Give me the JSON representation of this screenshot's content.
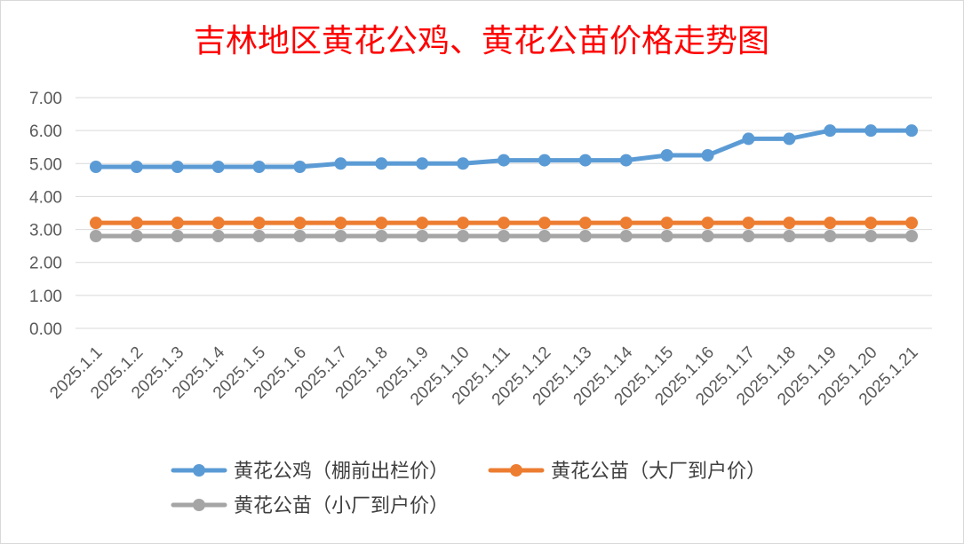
{
  "chart_data": {
    "type": "line",
    "title": "吉林地区黄花公鸡、黄花公苗价格走势图",
    "xlabel": "",
    "ylabel": "",
    "categories": [
      "2025.1.1",
      "2025.1.2",
      "2025.1.3",
      "2025.1.4",
      "2025.1.5",
      "2025.1.6",
      "2025.1.7",
      "2025.1.8",
      "2025.1.9",
      "2025.1.10",
      "2025.1.11",
      "2025.1.12",
      "2025.1.13",
      "2025.1.14",
      "2025.1.15",
      "2025.1.16",
      "2025.1.17",
      "2025.1.18",
      "2025.1.19",
      "2025.1.20",
      "2025.1.21"
    ],
    "y_ticks": [
      "0.00",
      "1.00",
      "2.00",
      "3.00",
      "4.00",
      "5.00",
      "6.00",
      "7.00"
    ],
    "ylim": [
      0,
      7
    ],
    "grid": true,
    "legend_position": "bottom",
    "series": [
      {
        "name": "黄花公鸡（棚前出栏价）",
        "color": "#5b9bd5",
        "values": [
          4.9,
          4.9,
          4.9,
          4.9,
          4.9,
          4.9,
          5.0,
          5.0,
          5.0,
          5.0,
          5.1,
          5.1,
          5.1,
          5.1,
          5.25,
          5.25,
          5.75,
          5.75,
          6.0,
          6.0,
          6.0
        ]
      },
      {
        "name": "黄花公苗（大厂到户价）",
        "color": "#ed7d31",
        "values": [
          3.2,
          3.2,
          3.2,
          3.2,
          3.2,
          3.2,
          3.2,
          3.2,
          3.2,
          3.2,
          3.2,
          3.2,
          3.2,
          3.2,
          3.2,
          3.2,
          3.2,
          3.2,
          3.2,
          3.2,
          3.2
        ]
      },
      {
        "name": "黄花公苗（小厂到户价）",
        "color": "#a5a5a5",
        "values": [
          2.8,
          2.8,
          2.8,
          2.8,
          2.8,
          2.8,
          2.8,
          2.8,
          2.8,
          2.8,
          2.8,
          2.8,
          2.8,
          2.8,
          2.8,
          2.8,
          2.8,
          2.8,
          2.8,
          2.8,
          2.8
        ]
      }
    ]
  }
}
